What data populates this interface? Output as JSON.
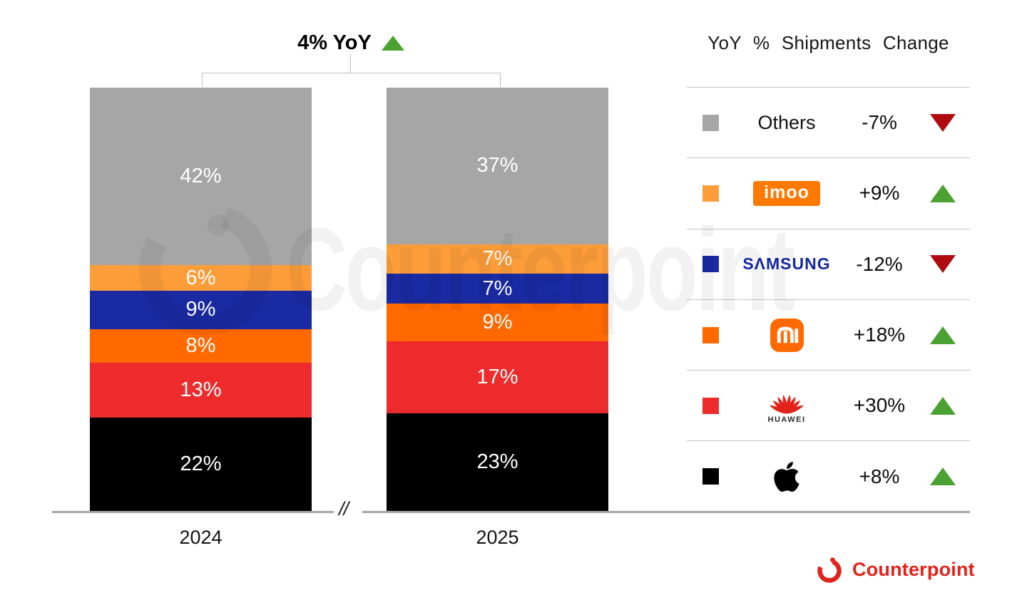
{
  "title": {
    "text": "4% YoY",
    "direction": "up"
  },
  "legend": {
    "title": "YoY % Shipments Change",
    "rows": [
      {
        "brand": "Others",
        "logo": "others",
        "label": "Others",
        "swatch": "#A6A6A6",
        "change": "-7%",
        "direction": "down"
      },
      {
        "brand": "imoo",
        "logo": "imoo",
        "label": "imoo",
        "swatch": "#FC9D3A",
        "change": "+9%",
        "direction": "up"
      },
      {
        "brand": "Samsung",
        "logo": "samsung",
        "label": "SΛMSUNG",
        "swatch": "#1A2AA3",
        "change": "-12%",
        "direction": "down"
      },
      {
        "brand": "Xiaomi",
        "logo": "xiaomi",
        "label": "mi",
        "swatch": "#FF6900",
        "change": "+18%",
        "direction": "up"
      },
      {
        "brand": "Huawei",
        "logo": "huawei",
        "label": "HUAWEI",
        "swatch": "#ED2A2C",
        "change": "+30%",
        "direction": "up"
      },
      {
        "brand": "Apple",
        "logo": "apple",
        "label": "Apple",
        "swatch": "#000000",
        "change": "+8%",
        "direction": "up"
      }
    ]
  },
  "chart_data": {
    "type": "bar",
    "stacked": true,
    "title": "4% YoY",
    "legend_title": "YoY % Shipments Change",
    "categories": [
      "2024",
      "2025"
    ],
    "series": [
      {
        "name": "Others",
        "color": "#A6A6A6",
        "values": [
          42,
          37
        ],
        "yoy_change": "-7%"
      },
      {
        "name": "imoo",
        "color": "#FC9D3A",
        "values": [
          6,
          7
        ],
        "yoy_change": "+9%"
      },
      {
        "name": "Samsung",
        "color": "#1A2AA3",
        "values": [
          9,
          7
        ],
        "yoy_change": "-12%"
      },
      {
        "name": "Xiaomi",
        "color": "#FF6900",
        "values": [
          8,
          9
        ],
        "yoy_change": "+18%"
      },
      {
        "name": "Huawei",
        "color": "#ED2A2C",
        "values": [
          13,
          17
        ],
        "yoy_change": "+30%"
      },
      {
        "name": "Apple",
        "color": "#000000",
        "values": [
          22,
          23
        ],
        "yoy_change": "+8%"
      }
    ],
    "value_suffix": "%",
    "ylim": [
      0,
      100
    ],
    "grid": false,
    "legend_position": "right"
  },
  "axis": {
    "break_symbol": "//"
  },
  "watermark": {
    "text": "Counterpoint"
  },
  "footer": {
    "brand": "Counterpoint"
  },
  "colors": {
    "up": "#4BA233",
    "down": "#B00B10",
    "brand_red": "#E2231B",
    "samsung_blue": "#1428A0",
    "imoo_bg": "#FF7800",
    "mi_bg": "#FF6900",
    "huawei_red": "#E2231A",
    "axis": "#A6A6A6"
  }
}
